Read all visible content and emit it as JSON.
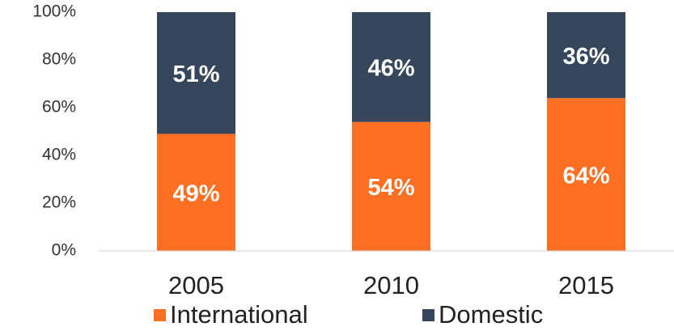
{
  "chart_data": {
    "type": "stacked_bar",
    "categories": [
      "2005",
      "2010",
      "2015"
    ],
    "series": [
      {
        "name": "International",
        "color": "#fd6f22",
        "values": [
          49,
          54,
          64
        ],
        "value_labels": [
          "49%",
          "54%",
          "64%"
        ]
      },
      {
        "name": "Domestic",
        "color": "#36475c",
        "values": [
          51,
          46,
          36
        ],
        "value_labels": [
          "51%",
          "46%",
          "36%"
        ]
      }
    ],
    "ylim": [
      0,
      100
    ],
    "yticks": [
      {
        "value": 0,
        "label": "0%"
      },
      {
        "value": 20,
        "label": "20%"
      },
      {
        "value": 40,
        "label": "40%"
      },
      {
        "value": 60,
        "label": "60%"
      },
      {
        "value": 80,
        "label": "80%"
      },
      {
        "value": 100,
        "label": "100%"
      }
    ],
    "grid": false,
    "legend": "bottom"
  }
}
